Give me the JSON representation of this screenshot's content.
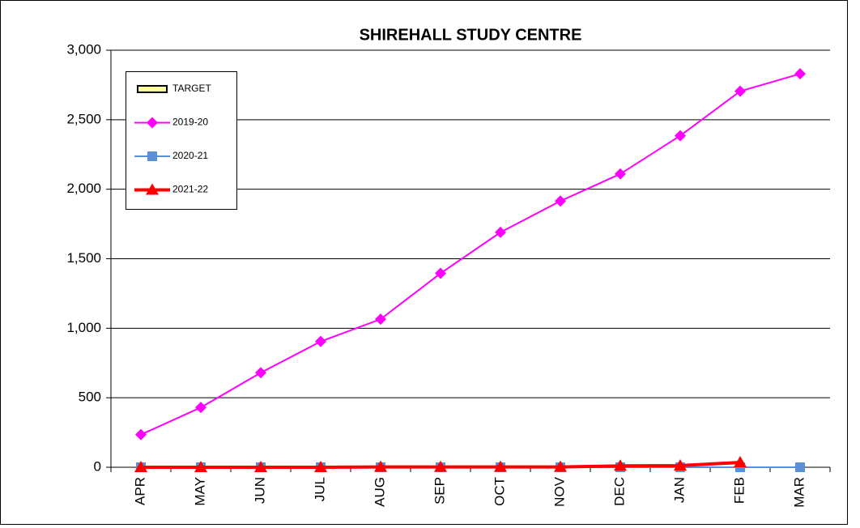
{
  "chart_data": {
    "type": "line",
    "title": "SHIREHALL STUDY CENTRE",
    "categories": [
      "APR",
      "MAY",
      "JUN",
      "JUL",
      "AUG",
      "SEP",
      "OCT",
      "NOV",
      "DEC",
      "JAN",
      "FEB",
      "MAR"
    ],
    "series": [
      {
        "name": "TARGET",
        "color": "#ffff99",
        "marker": "bar",
        "values": [
          null,
          null,
          null,
          null,
          null,
          null,
          null,
          null,
          null,
          null,
          null,
          null
        ]
      },
      {
        "name": "2019-20",
        "color": "#ff00ff",
        "marker": "diamond",
        "values": [
          235,
          430,
          680,
          905,
          1065,
          1395,
          1690,
          1915,
          2110,
          2385,
          2705,
          2830
        ]
      },
      {
        "name": "2020-21",
        "color": "#5b8fd6",
        "marker": "square",
        "values": [
          0,
          0,
          0,
          0,
          0,
          0,
          0,
          0,
          0,
          0,
          0,
          0
        ]
      },
      {
        "name": "2021-22",
        "color": "#ff0000",
        "marker": "triangle",
        "values": [
          0,
          0,
          0,
          0,
          2,
          2,
          2,
          2,
          10,
          12,
          35,
          null
        ]
      }
    ],
    "ylim": [
      0,
      3000
    ],
    "yticks": [
      0,
      500,
      {
        "value": 1000,
        "label": "1,000"
      },
      {
        "value": 1500,
        "label": "1,500"
      },
      {
        "value": 2000,
        "label": "2,000"
      },
      {
        "value": 2500,
        "label": "2,500"
      },
      {
        "value": 3000,
        "label": "3,000"
      }
    ],
    "grid": true,
    "legend": "upper left"
  }
}
